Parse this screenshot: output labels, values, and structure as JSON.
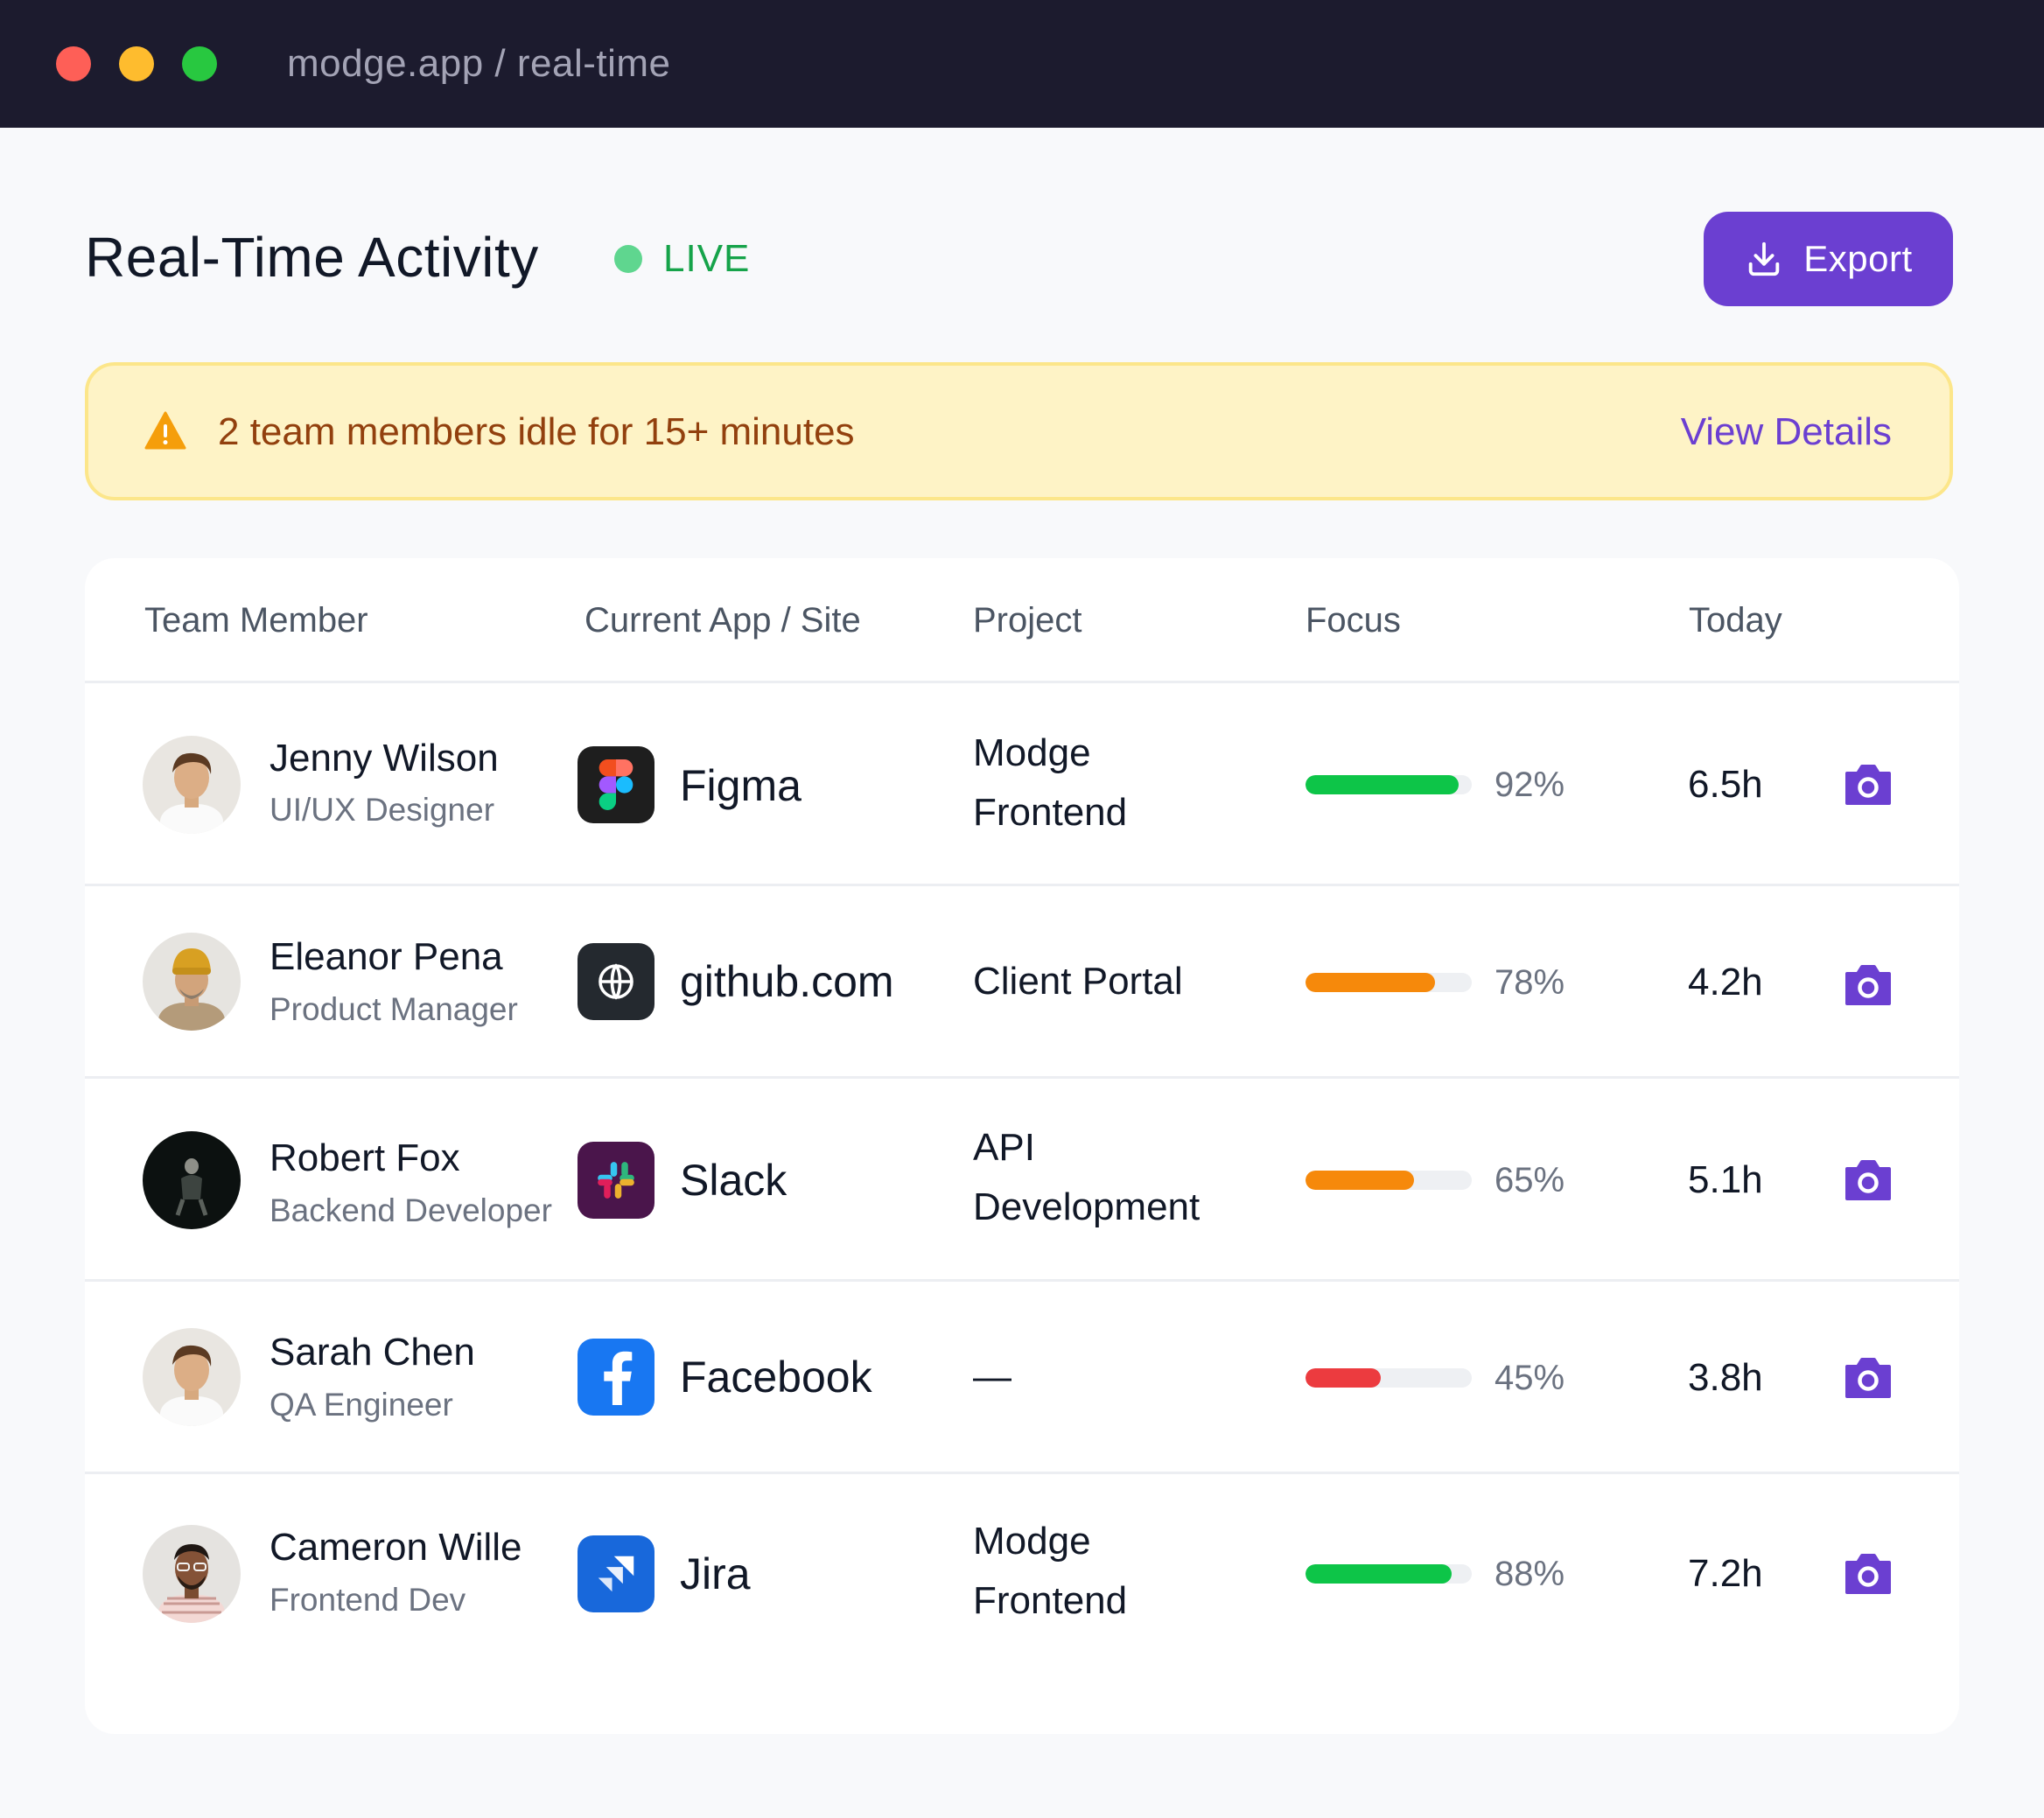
{
  "window": {
    "url": "modge.app / real-time"
  },
  "header": {
    "title": "Real-Time Activity",
    "live_label": "LIVE",
    "export_label": "Export"
  },
  "alert": {
    "message": "2 team members idle for 15+ minutes",
    "action": "View Details"
  },
  "table": {
    "columns": [
      "Team Member",
      "Current App / Site",
      "Project",
      "Focus",
      "Today"
    ],
    "rows": [
      {
        "name": "Jenny Wilson",
        "role": "UI/UX Designer",
        "app": "Figma",
        "app_icon": "figma-icon",
        "project_line1": "Modge",
        "project_line2": "Frontend",
        "focus_pct": "92%",
        "focus_value": 0.92,
        "focus_color": "#0dc548",
        "today": "6.5h"
      },
      {
        "name": "Eleanor Pena",
        "role": "Product Manager",
        "app": "github.com",
        "app_icon": "globe-icon",
        "project_line1": "Client Portal",
        "project_line2": "",
        "focus_pct": "78%",
        "focus_value": 0.78,
        "focus_color": "#f6890b",
        "today": "4.2h"
      },
      {
        "name": "Robert Fox",
        "role": "Backend Developer",
        "app": "Slack",
        "app_icon": "slack-icon",
        "project_line1": "API",
        "project_line2": "Development",
        "focus_pct": "65%",
        "focus_value": 0.65,
        "focus_color": "#f6890b",
        "today": "5.1h"
      },
      {
        "name": "Sarah Chen",
        "role": "QA Engineer",
        "app": "Facebook",
        "app_icon": "facebook-icon",
        "project_line1": "—",
        "project_line2": "",
        "focus_pct": "45%",
        "focus_value": 0.45,
        "focus_color": "#ec3b3f",
        "today": "3.8h"
      },
      {
        "name": "Cameron Wille",
        "role": "Frontend Dev",
        "app": "Jira",
        "app_icon": "jira-icon",
        "project_line1": "Modge",
        "project_line2": "Frontend",
        "focus_pct": "88%",
        "focus_value": 0.88,
        "focus_color": "#0dc548",
        "today": "7.2h"
      }
    ]
  },
  "colors": {
    "accent": "#6b3fd1",
    "live": "#16a34a",
    "alert_bg": "#fef3c6",
    "alert_text": "#92400e"
  }
}
